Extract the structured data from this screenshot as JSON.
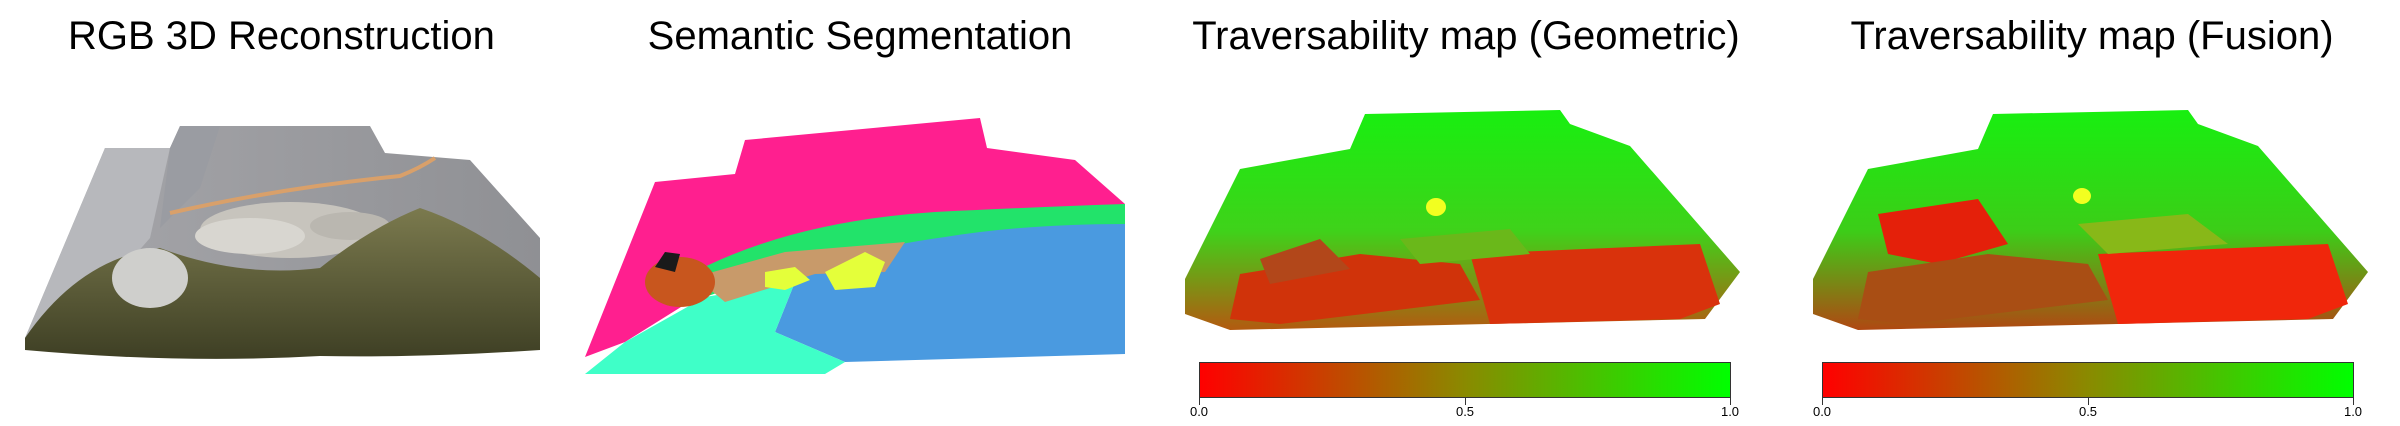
{
  "panels": [
    {
      "title": "RGB 3D Reconstruction"
    },
    {
      "title": "Semantic Segmentation"
    },
    {
      "title": "Traversability map (Geometric)"
    },
    {
      "title": "Traversability map (Fusion)"
    }
  ],
  "colorbar": {
    "min_label": "0.0",
    "mid_label": "0.5",
    "max_label": "1.0",
    "low_color": "#ff0000",
    "high_color": "#00ff00"
  },
  "colors": {
    "segmentation_pink": "#ff1f8f",
    "segmentation_blue": "#4a9ae0",
    "segmentation_mint": "#3fffc8",
    "segmentation_green": "#22e36a",
    "segmentation_tan": "#c89a6a",
    "segmentation_yellow": "#e4ff3a",
    "segmentation_orange": "#c8561e"
  }
}
